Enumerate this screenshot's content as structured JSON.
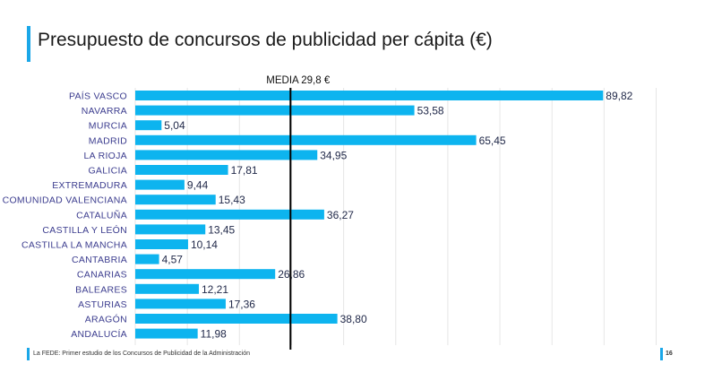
{
  "title": "Presupuesto de concursos de publicidad per cápita (€)",
  "footer": {
    "source": "La FEDE: Primer estudio de los Concursos de Publicidad de la Administración",
    "page": "16"
  },
  "colors": {
    "bar": "#0db4ef",
    "accent": "#1aa7e8",
    "category_text": "#3c3d8f",
    "grid": "#e6e6e6",
    "media_line": "#000000"
  },
  "chart_data": {
    "type": "bar",
    "orientation": "horizontal",
    "categories": [
      "PAÍS VASCO",
      "NAVARRA",
      "MURCIA",
      "MADRID",
      "LA RIOJA",
      "GALICIA",
      "EXTREMADURA",
      "COMUNIDAD VALENCIANA",
      "CATALUÑA",
      "CASTILLA Y LEÓN",
      "CASTILLA LA MANCHA",
      "CANTABRIA",
      "CANARIAS",
      "BALEARES",
      "ASTURIAS",
      "ARAGÓN",
      "ANDALUCÍA"
    ],
    "values": [
      89.82,
      53.58,
      5.04,
      65.45,
      34.95,
      17.81,
      9.44,
      15.43,
      36.27,
      13.45,
      10.14,
      4.57,
      26.86,
      12.21,
      17.36,
      38.8,
      11.98
    ],
    "value_labels": [
      "89,82",
      "53,58",
      "5,04",
      "65,45",
      "34,95",
      "17,81",
      "9,44",
      "15,43",
      "36,27",
      "13,45",
      "10,14",
      "4,57",
      "26,86",
      "12,21",
      "17,36",
      "38,80",
      "11,98"
    ],
    "xlim": [
      0,
      100
    ],
    "grid": true,
    "reference_line": {
      "value": 29.8,
      "label": "MEDIA 29,8 €"
    }
  }
}
